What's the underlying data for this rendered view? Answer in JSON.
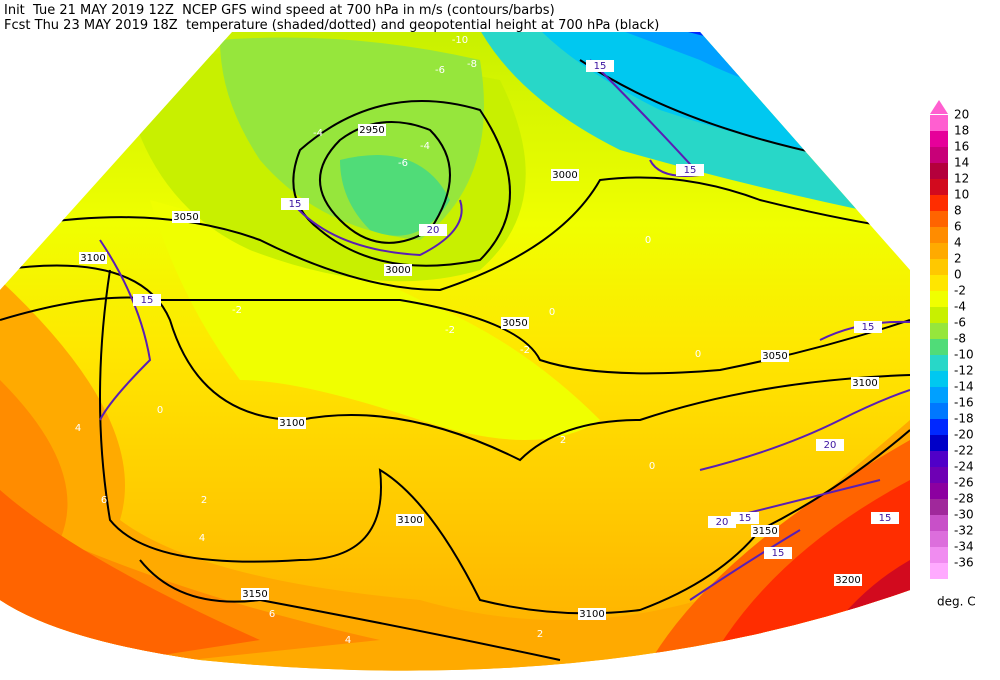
{
  "header": {
    "line1": "Init  Tue 21 MAY 2019 12Z  NCEP GFS wind speed at 700 hPa in m/s (contours/barbs)",
    "line2": "Fcst Thu 23 MAY 2019 18Z  temperature (shaded/dotted) and geopotential height at 700 hPa (black)"
  },
  "colorbar": {
    "units": "deg. C",
    "entries": [
      {
        "label": 20,
        "color": "#ff5fd0"
      },
      {
        "label": 18,
        "color": "#e6009a"
      },
      {
        "label": 16,
        "color": "#c80078"
      },
      {
        "label": 14,
        "color": "#b4003c"
      },
      {
        "label": 12,
        "color": "#d20a1e"
      },
      {
        "label": 10,
        "color": "#ff2d00"
      },
      {
        "label": 8,
        "color": "#ff6400"
      },
      {
        "label": 6,
        "color": "#ff8c00"
      },
      {
        "label": 4,
        "color": "#ffaa00"
      },
      {
        "label": 2,
        "color": "#ffc800"
      },
      {
        "label": 0,
        "color": "#ffe600"
      },
      {
        "label": -2,
        "color": "#f0ff00"
      },
      {
        "label": -4,
        "color": "#c8f000"
      },
      {
        "label": -6,
        "color": "#96e63c"
      },
      {
        "label": -8,
        "color": "#50dc78"
      },
      {
        "label": -10,
        "color": "#28d7c8"
      },
      {
        "label": -12,
        "color": "#00c8f0"
      },
      {
        "label": -14,
        "color": "#00a0ff"
      },
      {
        "label": -16,
        "color": "#0078ff"
      },
      {
        "label": -18,
        "color": "#0028ff"
      },
      {
        "label": -20,
        "color": "#0000c8"
      },
      {
        "label": -22,
        "color": "#5000c8"
      },
      {
        "label": -24,
        "color": "#6e00b4"
      },
      {
        "label": -26,
        "color": "#8c00a0"
      },
      {
        "label": -28,
        "color": "#a0289b"
      },
      {
        "label": -30,
        "color": "#c850c8"
      },
      {
        "label": -32,
        "color": "#dc6edc"
      },
      {
        "label": -34,
        "color": "#f08cf0"
      },
      {
        "label": -36,
        "color": "#ffaaff"
      }
    ]
  },
  "map": {
    "height_labels": [
      "2950",
      "3000",
      "3000",
      "3050",
      "3050",
      "3050",
      "3100",
      "3100",
      "3100",
      "3100",
      "3100",
      "3150",
      "3150",
      "3200"
    ],
    "wind_labels": [
      "15",
      "15",
      "15",
      "15",
      "15",
      "15",
      "15",
      "15",
      "20",
      "20",
      "20"
    ],
    "temp_labels": [
      "-10",
      "-6",
      "-8",
      "-4",
      "-6",
      "-4",
      "-2",
      "-2",
      "0",
      "0",
      "0",
      "2",
      "4",
      "6",
      "4",
      "2",
      "4",
      "6",
      "0",
      "-2",
      "0",
      "2"
    ]
  }
}
